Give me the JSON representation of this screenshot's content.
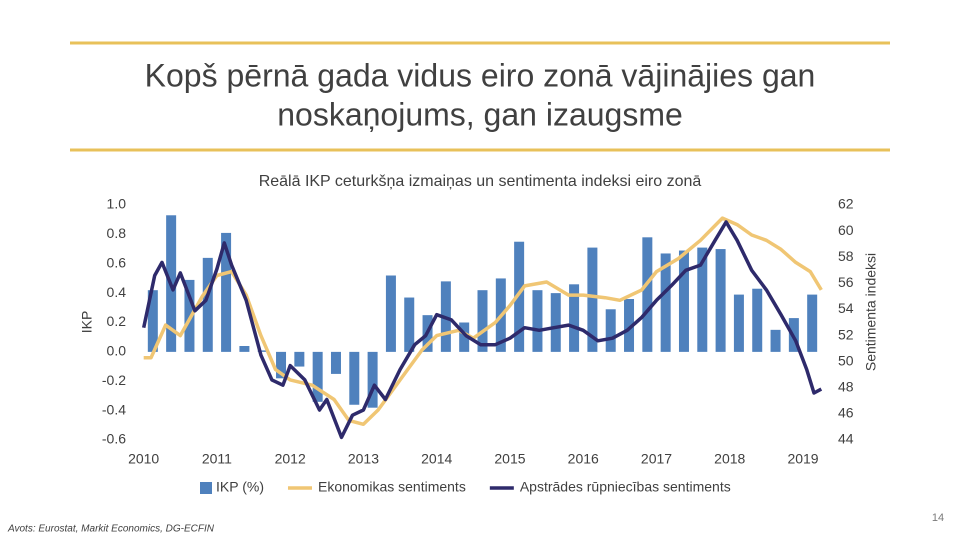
{
  "header": {
    "title_lines": [
      "Kopš pērnā gada vidus eiro zonā vājinājies gan",
      "noskaņojums, gan izaugsme"
    ]
  },
  "chart_data": {
    "type": "bar_line_combo",
    "title": "Reālā IKP ceturkšņa izmaiņas un sentimenta indeksi eiro zonā",
    "y_label": "IKP",
    "y2_label": "Sentimenta indeksi",
    "xlim": [
      2009.95,
      2019.3
    ],
    "xticks": [
      2010,
      2011,
      2012,
      2013,
      2014,
      2015,
      2016,
      2017,
      2018,
      2019
    ],
    "ylim": [
      -0.6,
      1.0
    ],
    "yticks": [
      {
        "value": -0.6,
        "label": "-0.6"
      },
      {
        "value": -0.4,
        "label": "-0.4"
      },
      {
        "value": -0.2,
        "label": "-0.2"
      },
      {
        "value": 0,
        "label": "0.0"
      },
      {
        "value": 0.2,
        "label": "0.2"
      },
      {
        "value": 0.4,
        "label": "0.4"
      },
      {
        "value": 0.6,
        "label": "0.6"
      },
      {
        "value": 0.8,
        "label": "0.8"
      },
      {
        "value": 1.0,
        "label": "1.0"
      }
    ],
    "y2lim": [
      44,
      62
    ],
    "y2ticks": [
      44,
      46,
      48,
      50,
      52,
      54,
      56,
      58,
      60,
      62
    ],
    "series": [
      {
        "name": "IKP (%)",
        "kind": "bar",
        "color": "#4f81bd",
        "x": [
          2010.125,
          2010.375,
          2010.625,
          2010.875,
          2011.125,
          2011.375,
          2011.625,
          2011.875,
          2012.125,
          2012.375,
          2012.625,
          2012.875,
          2013.125,
          2013.375,
          2013.625,
          2013.875,
          2014.125,
          2014.375,
          2014.625,
          2014.875,
          2015.125,
          2015.375,
          2015.625,
          2015.875,
          2016.125,
          2016.375,
          2016.625,
          2016.875,
          2017.125,
          2017.375,
          2017.625,
          2017.875,
          2018.125,
          2018.375,
          2018.625,
          2018.875,
          2019.125
        ],
        "values": [
          0.42,
          0.93,
          0.49,
          0.64,
          0.81,
          0.04,
          0.01,
          -0.18,
          -0.1,
          -0.34,
          -0.15,
          -0.36,
          -0.38,
          0.52,
          0.37,
          0.25,
          0.48,
          0.2,
          0.42,
          0.5,
          0.75,
          0.42,
          0.4,
          0.46,
          0.71,
          0.29,
          0.36,
          0.78,
          0.67,
          0.69,
          0.71,
          0.7,
          0.39,
          0.43,
          0.15,
          0.23,
          0.39
        ]
      },
      {
        "name": "Ekonomikas sentiments",
        "kind": "line",
        "axis": "y2",
        "color": "#f0c674",
        "x": [
          2010.0,
          2010.1,
          2010.3,
          2010.5,
          2010.8,
          2011.0,
          2011.2,
          2011.4,
          2011.6,
          2011.8,
          2012.0,
          2012.3,
          2012.6,
          2012.8,
          2013.0,
          2013.2,
          2013.5,
          2013.8,
          2014.0,
          2014.3,
          2014.5,
          2014.8,
          2015.0,
          2015.2,
          2015.5,
          2015.8,
          2016.0,
          2016.3,
          2016.5,
          2016.8,
          2017.0,
          2017.3,
          2017.6,
          2017.9,
          2018.1,
          2018.3,
          2018.5,
          2018.7,
          2018.9,
          2019.1,
          2019.25
        ],
        "values": [
          50.3,
          50.3,
          52.8,
          52,
          55,
          56.6,
          56.9,
          55.1,
          52,
          49.4,
          48.6,
          48.2,
          47.1,
          45.5,
          45.2,
          46.3,
          48.6,
          50.9,
          52,
          52.4,
          51.8,
          53,
          54.3,
          55.8,
          56.1,
          55.1,
          55.1,
          54.9,
          54.7,
          55.5,
          56.9,
          57.9,
          59.3,
          61,
          60.5,
          59.7,
          59.3,
          58.6,
          57.6,
          56.9,
          55.5
        ]
      },
      {
        "name": "Apstrādes rūpniecības sentiments",
        "kind": "line",
        "axis": "y2",
        "color": "#2e2a6b",
        "x": [
          2010.0,
          2010.15,
          2010.25,
          2010.4,
          2010.5,
          2010.7,
          2010.85,
          2011.0,
          2011.1,
          2011.2,
          2011.4,
          2011.6,
          2011.75,
          2011.9,
          2012.0,
          2012.2,
          2012.4,
          2012.5,
          2012.7,
          2012.85,
          2013.0,
          2013.15,
          2013.3,
          2013.5,
          2013.7,
          2013.85,
          2014.0,
          2014.2,
          2014.4,
          2014.6,
          2014.8,
          2015.0,
          2015.2,
          2015.4,
          2015.6,
          2015.8,
          2016.0,
          2016.2,
          2016.4,
          2016.6,
          2016.8,
          2017.0,
          2017.2,
          2017.4,
          2017.6,
          2017.8,
          2017.95,
          2018.1,
          2018.3,
          2018.5,
          2018.7,
          2018.9,
          2019.05,
          2019.15,
          2019.25
        ],
        "values": [
          52.6,
          56.6,
          57.6,
          55.5,
          56.8,
          53.9,
          54.7,
          57.1,
          59.1,
          57.4,
          54.7,
          50.5,
          48.6,
          48.2,
          49.7,
          48.6,
          46.3,
          47.1,
          44.2,
          45.9,
          46.3,
          48.2,
          47.1,
          49.4,
          51.3,
          52,
          53.6,
          53.2,
          52,
          51.3,
          51.3,
          51.8,
          52.6,
          52.4,
          52.6,
          52.8,
          52.4,
          51.6,
          51.8,
          52.4,
          53.4,
          54.7,
          55.8,
          57,
          57.4,
          59.3,
          60.7,
          59.3,
          57,
          55.5,
          53.6,
          51.6,
          49.4,
          47.6,
          47.9
        ]
      }
    ]
  },
  "footer": {
    "source": "Avots: Eurostat, Markit Economics, DG-ECFIN",
    "page": "14"
  }
}
